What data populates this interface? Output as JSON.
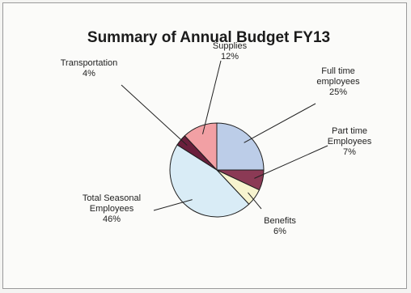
{
  "chart_data": {
    "type": "pie",
    "title": "Summary of Annual Budget FY13",
    "slices": [
      {
        "label": [
          "Full time",
          "employees"
        ],
        "value": 25,
        "pct": "25%",
        "color": "#bccde8"
      },
      {
        "label": [
          "Part time",
          "Employees"
        ],
        "value": 7,
        "pct": "7%",
        "color": "#8b3a55"
      },
      {
        "label": [
          "Benefits"
        ],
        "value": 6,
        "pct": "6%",
        "color": "#f7f4cf"
      },
      {
        "label": [
          "Total Seasonal",
          "Employees"
        ],
        "value": 46,
        "pct": "46%",
        "color": "#d9ecf6"
      },
      {
        "label": [
          "Transportation"
        ],
        "value": 4,
        "pct": "4%",
        "color": "#6a1f3c"
      },
      {
        "label": [
          "Supplies"
        ],
        "value": 12,
        "pct": "12%",
        "color": "#f2a0a4"
      }
    ]
  }
}
